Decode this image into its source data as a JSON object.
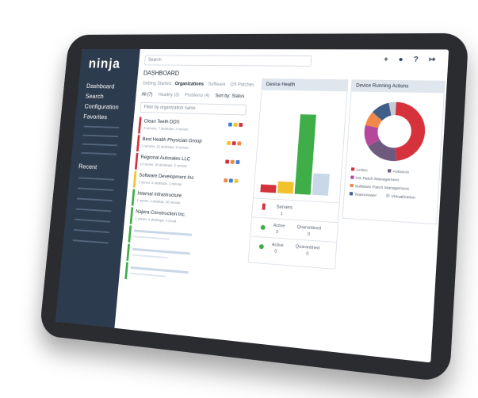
{
  "sidebar": {
    "logo": "ninja",
    "nav": [
      "Dashboard",
      "Search",
      "Configuration",
      "Favorites"
    ],
    "recent_title": "Recent"
  },
  "header": {
    "search_placeholder": "Search",
    "title": "DASHBOARD",
    "tabs": [
      "Getting Started",
      "Organizations",
      "Software",
      "OS Patches"
    ],
    "filters": [
      "All (7)",
      "Healthy (3)",
      "Problems (4)",
      "Sort by: Status"
    ],
    "filter_placeholder": "Filter by organization name"
  },
  "organizations": [
    {
      "name": "Clean Teeth DDS",
      "devices": "3 servers, 7 desktops, 3 remote",
      "status_color": "#d6323c"
    },
    {
      "name": "Best Health Physician Group",
      "devices": "2 servers, 22 desktops, 8 remote",
      "status_color": "#d6323c"
    },
    {
      "name": "Regional Autosales LLC",
      "devices": "10 server, 30 desktops, 5 remote",
      "status_color": "#d6323c"
    },
    {
      "name": "Software Development Inc",
      "devices": "1 server, 5 desktops, 2 remote",
      "status_color": "#f2c12e"
    },
    {
      "name": "Internal Infrastructure",
      "devices": "1 server, 1 desktop, 30 remote",
      "status_color": "#3fae49"
    },
    {
      "name": "Najera Construction Inc.",
      "devices": "1 server, 4 desktops, 4 cloud",
      "status_color": "#3fae49"
    }
  ],
  "chart_data": [
    {
      "type": "bar",
      "title": "Device Health",
      "categories": [
        null,
        null,
        null,
        null
      ],
      "values": [
        8,
        12,
        82,
        22
      ],
      "colors": [
        "#d6323c",
        "#f2c12e",
        "#3fae49",
        "#c9d8e8"
      ],
      "ylim": [
        0,
        100
      ],
      "servers_label": "Servers",
      "servers_count": 1,
      "rows": [
        {
          "active_label": "Active",
          "active": 0,
          "quarantined_label": "Quarantined",
          "quarantined": 0
        },
        {
          "active_label": "Active",
          "active": 0,
          "quarantined_label": "Quarantined",
          "quarantined": 0
        }
      ]
    },
    {
      "type": "pie",
      "title": "Device Running Actions",
      "categories": [
        "Action",
        "Antivirus",
        "OS Patch Management",
        "Software Patch Management",
        "Teamviewer",
        "Virtualization"
      ],
      "values": [
        48,
        18,
        12,
        8,
        10,
        4
      ],
      "colors": [
        "#d6323c",
        "#6e5a7e",
        "#b5489a",
        "#f0884a",
        "#3f5f8a",
        "#c5ccd4"
      ]
    }
  ]
}
